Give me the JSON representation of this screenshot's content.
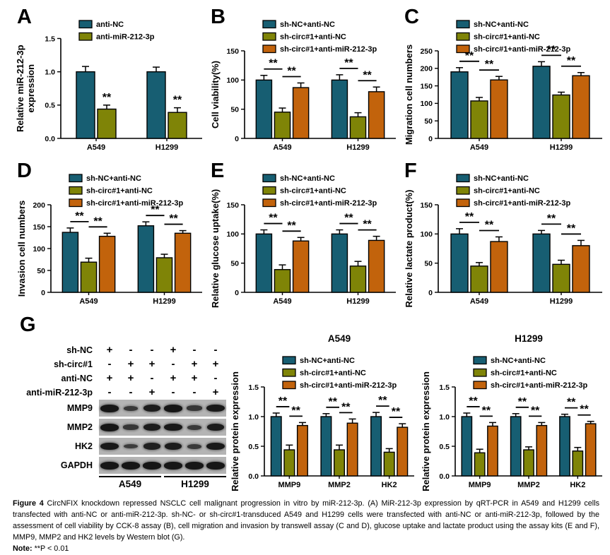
{
  "colors": {
    "teal": "#175E72",
    "olive": "#7F8407",
    "orange": "#C2630C",
    "axis": "#000000",
    "blot_bg": "#b4b4b4",
    "band": "#161616"
  },
  "panels": {
    "a": "A",
    "b": "B",
    "c": "C",
    "d": "D",
    "e": "E",
    "f": "F",
    "g": "G"
  },
  "chart_data": [
    {
      "id": "chartA",
      "type": "bar",
      "ylabel": "Relative miR-212-3p\nexpression",
      "ylim": [
        0,
        1.5
      ],
      "yticks": [
        0,
        0.5,
        1.0,
        1.5
      ],
      "tick_decimals": 1,
      "categories": [
        "A549",
        "H1299"
      ],
      "series": [
        {
          "name": "anti-NC",
          "color": "teal",
          "values": [
            1.0,
            1.0
          ],
          "errors": [
            0.08,
            0.07
          ]
        },
        {
          "name": "anti-miR-212-3p",
          "color": "olive",
          "values": [
            0.44,
            0.39
          ],
          "errors": [
            0.06,
            0.07
          ]
        }
      ],
      "sig": [
        {
          "cat": 0,
          "bars": [
            1
          ],
          "label": "**",
          "bracket": false
        },
        {
          "cat": 1,
          "bars": [
            1
          ],
          "label": "**",
          "bracket": false
        }
      ]
    },
    {
      "id": "chartB",
      "type": "bar",
      "ylabel": "Cell viability(%)",
      "ylim": [
        0,
        150
      ],
      "yticks": [
        0,
        50,
        100,
        150
      ],
      "tick_decimals": 0,
      "categories": [
        "A549",
        "H1299"
      ],
      "series": [
        {
          "name": "sh-NC+anti-NC",
          "color": "teal",
          "values": [
            100,
            100
          ],
          "errors": [
            8,
            9
          ]
        },
        {
          "name": "sh-circ#1+anti-NC",
          "color": "olive",
          "values": [
            45,
            37
          ],
          "errors": [
            7,
            7
          ]
        },
        {
          "name": "sh-circ#1+anti-miR-212-3p",
          "color": "orange",
          "values": [
            87,
            80
          ],
          "errors": [
            8,
            8
          ]
        }
      ],
      "sig": [
        {
          "cat": 0,
          "bars": [
            0,
            1
          ],
          "label": "**",
          "bracket": true
        },
        {
          "cat": 0,
          "bars": [
            1,
            2
          ],
          "label": "**",
          "bracket": true
        },
        {
          "cat": 1,
          "bars": [
            0,
            1
          ],
          "label": "**",
          "bracket": true
        },
        {
          "cat": 1,
          "bars": [
            1,
            2
          ],
          "label": "**",
          "bracket": true
        }
      ]
    },
    {
      "id": "chartC",
      "type": "bar",
      "ylabel": "Migration cell numbers",
      "ylim": [
        0,
        250
      ],
      "yticks": [
        0,
        50,
        100,
        150,
        200,
        250
      ],
      "tick_decimals": 0,
      "categories": [
        "A549",
        "H1299"
      ],
      "series": [
        {
          "name": "sh-NC+anti-NC",
          "color": "teal",
          "values": [
            190,
            206
          ],
          "errors": [
            12,
            13
          ]
        },
        {
          "name": "sh-circ#1+anti-NC",
          "color": "olive",
          "values": [
            107,
            124
          ],
          "errors": [
            10,
            8
          ]
        },
        {
          "name": "sh-circ#1+anti-miR-212-3p",
          "color": "orange",
          "values": [
            167,
            179
          ],
          "errors": [
            10,
            9
          ]
        }
      ],
      "sig": [
        {
          "cat": 0,
          "bars": [
            0,
            1
          ],
          "label": "**",
          "bracket": true
        },
        {
          "cat": 0,
          "bars": [
            1,
            2
          ],
          "label": "**",
          "bracket": true
        },
        {
          "cat": 1,
          "bars": [
            0,
            1
          ],
          "label": "**",
          "bracket": true
        },
        {
          "cat": 1,
          "bars": [
            1,
            2
          ],
          "label": "**",
          "bracket": true
        }
      ]
    },
    {
      "id": "chartD",
      "type": "bar",
      "ylabel": "Invasion cell numbers",
      "ylim": [
        0,
        200
      ],
      "yticks": [
        0,
        50,
        100,
        150,
        200
      ],
      "tick_decimals": 0,
      "categories": [
        "A549",
        "H1299"
      ],
      "series": [
        {
          "name": "sh-NC+anti-NC",
          "color": "teal",
          "values": [
            137,
            152
          ],
          "errors": [
            10,
            9
          ]
        },
        {
          "name": "sh-circ#1+anti-NC",
          "color": "olive",
          "values": [
            69,
            79
          ],
          "errors": [
            9,
            8
          ]
        },
        {
          "name": "sh-circ#1+anti-miR-212-3p",
          "color": "orange",
          "values": [
            128,
            135
          ],
          "errors": [
            7,
            6
          ]
        }
      ],
      "sig": [
        {
          "cat": 0,
          "bars": [
            0,
            1
          ],
          "label": "**",
          "bracket": true
        },
        {
          "cat": 0,
          "bars": [
            1,
            2
          ],
          "label": "**",
          "bracket": true
        },
        {
          "cat": 1,
          "bars": [
            0,
            1
          ],
          "label": "**",
          "bracket": true
        },
        {
          "cat": 1,
          "bars": [
            1,
            2
          ],
          "label": "**",
          "bracket": true
        }
      ]
    },
    {
      "id": "chartE",
      "type": "bar",
      "ylabel": "Relative glucose uptake(%)",
      "ylim": [
        0,
        150
      ],
      "yticks": [
        0,
        50,
        100,
        150
      ],
      "tick_decimals": 0,
      "categories": [
        "A549",
        "H1299"
      ],
      "series": [
        {
          "name": "sh-NC+anti-NC",
          "color": "teal",
          "values": [
            100,
            100
          ],
          "errors": [
            7,
            7
          ]
        },
        {
          "name": "sh-circ#1+anti-NC",
          "color": "olive",
          "values": [
            39,
            45
          ],
          "errors": [
            8,
            8
          ]
        },
        {
          "name": "sh-circ#1+anti-miR-212-3p",
          "color": "orange",
          "values": [
            88,
            89
          ],
          "errors": [
            6,
            7
          ]
        }
      ],
      "sig": [
        {
          "cat": 0,
          "bars": [
            0,
            1
          ],
          "label": "**",
          "bracket": true
        },
        {
          "cat": 0,
          "bars": [
            1,
            2
          ],
          "label": "**",
          "bracket": true
        },
        {
          "cat": 1,
          "bars": [
            0,
            1
          ],
          "label": "**",
          "bracket": true
        },
        {
          "cat": 1,
          "bars": [
            1,
            2
          ],
          "label": "**",
          "bracket": true
        }
      ]
    },
    {
      "id": "chartF",
      "type": "bar",
      "ylabel": "Relative lactate product(%)",
      "ylim": [
        0,
        150
      ],
      "yticks": [
        0,
        50,
        100,
        150
      ],
      "tick_decimals": 0,
      "categories": [
        "A549",
        "H1299"
      ],
      "series": [
        {
          "name": "sh-NC+anti-NC",
          "color": "teal",
          "values": [
            100,
            100
          ],
          "errors": [
            9,
            6
          ]
        },
        {
          "name": "sh-circ#1+anti-NC",
          "color": "olive",
          "values": [
            45,
            48
          ],
          "errors": [
            6,
            7
          ]
        },
        {
          "name": "sh-circ#1+anti-miR-212-3p",
          "color": "orange",
          "values": [
            87,
            80
          ],
          "errors": [
            8,
            9
          ]
        }
      ],
      "sig": [
        {
          "cat": 0,
          "bars": [
            0,
            1
          ],
          "label": "**",
          "bracket": true
        },
        {
          "cat": 0,
          "bars": [
            1,
            2
          ],
          "label": "**",
          "bracket": true
        },
        {
          "cat": 1,
          "bars": [
            0,
            1
          ],
          "label": "**",
          "bracket": true
        },
        {
          "cat": 1,
          "bars": [
            1,
            2
          ],
          "label": "**",
          "bracket": true
        }
      ]
    },
    {
      "id": "chartG1",
      "type": "bar",
      "title": "A549",
      "ylabel": "Relative protein expression",
      "ylim": [
        0,
        1.5
      ],
      "yticks": [
        0,
        0.5,
        1.0,
        1.5
      ],
      "tick_decimals": 1,
      "categories": [
        "MMP9",
        "MMP2",
        "HK2"
      ],
      "series": [
        {
          "name": "sh-NC+anti-NC",
          "color": "teal",
          "values": [
            1.0,
            1.0,
            1.0
          ],
          "errors": [
            0.06,
            0.05,
            0.07
          ]
        },
        {
          "name": "sh-circ#1+anti-NC",
          "color": "olive",
          "values": [
            0.44,
            0.44,
            0.4
          ],
          "errors": [
            0.08,
            0.08,
            0.06
          ]
        },
        {
          "name": "sh-circ#1+anti-miR-212-3p",
          "color": "orange",
          "values": [
            0.85,
            0.89,
            0.82
          ],
          "errors": [
            0.05,
            0.07,
            0.06
          ]
        }
      ],
      "sig": [
        {
          "cat": 0,
          "bars": [
            0,
            1
          ],
          "label": "**",
          "bracket": true
        },
        {
          "cat": 0,
          "bars": [
            1,
            2
          ],
          "label": "**",
          "bracket": true
        },
        {
          "cat": 1,
          "bars": [
            0,
            1
          ],
          "label": "**",
          "bracket": true
        },
        {
          "cat": 1,
          "bars": [
            1,
            2
          ],
          "label": "**",
          "bracket": true
        },
        {
          "cat": 2,
          "bars": [
            0,
            1
          ],
          "label": "**",
          "bracket": true
        },
        {
          "cat": 2,
          "bars": [
            1,
            2
          ],
          "label": "**",
          "bracket": true
        }
      ]
    },
    {
      "id": "chartG2",
      "type": "bar",
      "title": "H1299",
      "ylabel": "Relative protein expression",
      "ylim": [
        0,
        1.5
      ],
      "yticks": [
        0,
        0.5,
        1.0,
        1.5
      ],
      "tick_decimals": 1,
      "categories": [
        "MMP9",
        "MMP2",
        "HK2"
      ],
      "series": [
        {
          "name": "sh-NC+anti-NC",
          "color": "teal",
          "values": [
            1.0,
            1.0,
            1.0
          ],
          "errors": [
            0.06,
            0.05,
            0.04
          ]
        },
        {
          "name": "sh-circ#1+anti-NC",
          "color": "olive",
          "values": [
            0.39,
            0.44,
            0.42
          ],
          "errors": [
            0.06,
            0.05,
            0.06
          ]
        },
        {
          "name": "sh-circ#1+anti-miR-212-3p",
          "color": "orange",
          "values": [
            0.84,
            0.85,
            0.88
          ],
          "errors": [
            0.06,
            0.05,
            0.04
          ]
        }
      ],
      "sig": [
        {
          "cat": 0,
          "bars": [
            0,
            1
          ],
          "label": "**",
          "bracket": true
        },
        {
          "cat": 0,
          "bars": [
            1,
            2
          ],
          "label": "**",
          "bracket": true
        },
        {
          "cat": 1,
          "bars": [
            0,
            1
          ],
          "label": "**",
          "bracket": true
        },
        {
          "cat": 1,
          "bars": [
            1,
            2
          ],
          "label": "**",
          "bracket": true
        },
        {
          "cat": 2,
          "bars": [
            0,
            1
          ],
          "label": "**",
          "bracket": true
        },
        {
          "cat": 2,
          "bars": [
            1,
            2
          ],
          "label": "**",
          "bracket": true
        }
      ]
    }
  ],
  "blot": {
    "condition_rows": [
      {
        "label": "sh-NC",
        "signs": [
          "+",
          "-",
          "-",
          "+",
          "-",
          "-"
        ]
      },
      {
        "label": "sh-circ#1",
        "signs": [
          "-",
          "+",
          "+",
          "-",
          "+",
          "+"
        ]
      },
      {
        "label": "anti-NC",
        "signs": [
          "+",
          "+",
          "-",
          "+",
          "+",
          "-"
        ]
      },
      {
        "label": "anti-miR-212-3p",
        "signs": [
          "-",
          "-",
          "+",
          "-",
          "-",
          "+"
        ]
      }
    ],
    "bands": [
      {
        "label": "MMP9",
        "intensities": [
          1.0,
          0.5,
          0.9,
          1.0,
          0.55,
          0.95
        ]
      },
      {
        "label": "MMP2",
        "intensities": [
          1.0,
          0.55,
          0.9,
          0.95,
          0.5,
          0.9
        ]
      },
      {
        "label": "HK2",
        "intensities": [
          0.95,
          0.45,
          0.85,
          0.9,
          0.5,
          0.95
        ]
      },
      {
        "label": "GAPDH",
        "intensities": [
          1.0,
          1.0,
          1.0,
          1.0,
          1.0,
          1.0
        ]
      }
    ],
    "groups": [
      "A549",
      "H1299"
    ]
  },
  "caption": {
    "figure_label": "Figure 4",
    "text": "CircNFIX knockdown repressed NSCLC cell malignant progression in vitro by miR-212-3p. (A) MiR-212-3p expression by qRT-PCR in A549 and H1299 cells transfected with anti-NC or anti-miR-212-3p. sh-NC- or sh-circ#1-transduced A549 and H1299 cells were transfected with anti-NC or anti-miR-212-3p, followed by the assessment of cell viability by CCK-8 assay (B), cell migration and invasion by transwell assay (C and D), glucose uptake and lactate product using the assay kits (E and F), MMP9, MMP2 and HK2 levels by Western blot (G).",
    "note_label": "Note:",
    "note_text": "**P < 0.01"
  }
}
